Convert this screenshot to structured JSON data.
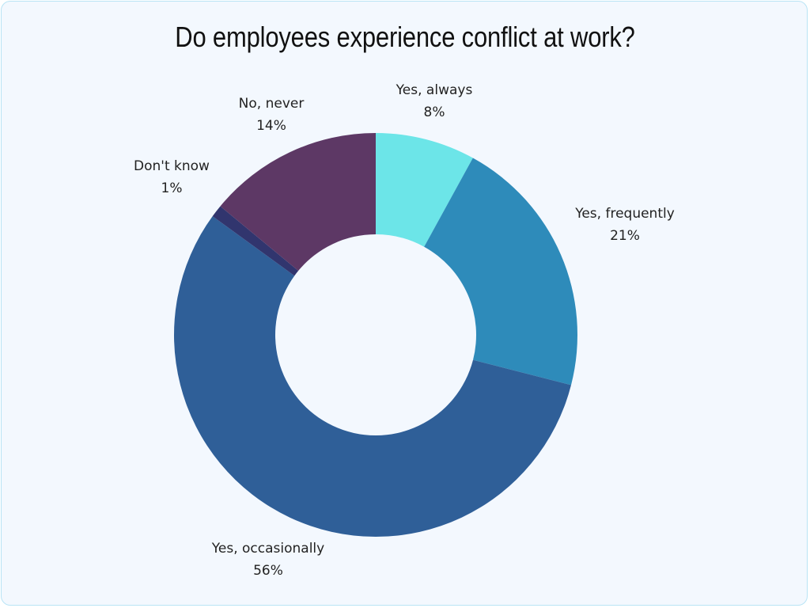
{
  "chart_data": {
    "type": "pie",
    "subtype": "donut",
    "title": "Do employees experience conflict at work?",
    "categories": [
      "Yes, always",
      "Yes, frequently",
      "Yes, occasionally",
      "Don't know",
      "No, never"
    ],
    "values": [
      8,
      21,
      56,
      1,
      14
    ],
    "unit": "%",
    "colors": [
      "#6ce5e8",
      "#2e8bba",
      "#2f5f98",
      "#31356e",
      "#5d3865"
    ],
    "start_angle": "12 o'clock",
    "direction": "clockwise",
    "legend": "none (labels outside slices)"
  },
  "labels": [
    {
      "name": "Yes, always",
      "pct": "8%"
    },
    {
      "name": "Yes, frequently",
      "pct": "21%"
    },
    {
      "name": "Yes, occasionally",
      "pct": "56%"
    },
    {
      "name": "Don't know",
      "pct": "1%"
    },
    {
      "name": "No, never",
      "pct": "14%"
    }
  ]
}
